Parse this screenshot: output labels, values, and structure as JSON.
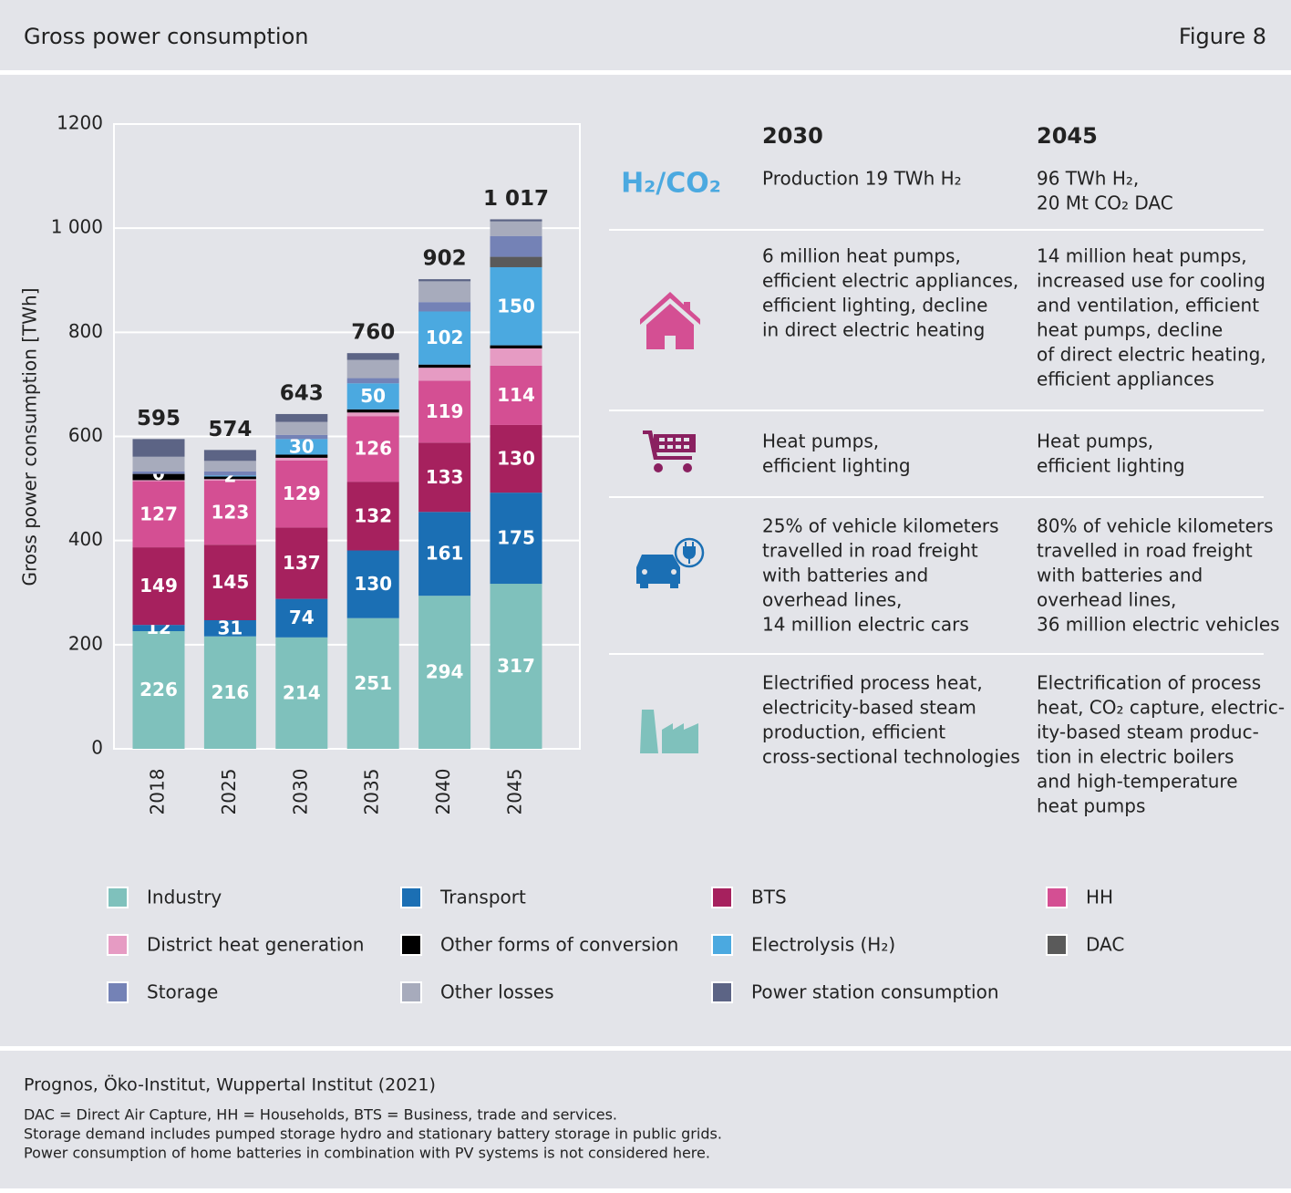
{
  "header": {
    "title": "Gross power consumption",
    "figure": "Figure 8"
  },
  "chart_data": {
    "type": "stacked-bar",
    "ylabel": "Gross power consumption [TWh]",
    "categories": [
      "2018",
      "2025",
      "2030",
      "2035",
      "2040",
      "2045"
    ],
    "ylim": [
      0,
      1200
    ],
    "yticks": [
      0,
      200,
      400,
      600,
      800,
      {
        "value": 1000,
        "label": "1 000"
      },
      1200
    ],
    "grid": true,
    "series": [
      {
        "name": "Industry",
        "color": "#7fc1bc",
        "show_labels": true,
        "values": [
          226,
          216,
          214,
          251,
          294,
          317
        ]
      },
      {
        "name": "Transport",
        "color": "#1b6fb4",
        "show_labels": true,
        "values": [
          12,
          31,
          74,
          130,
          161,
          175
        ]
      },
      {
        "name": "BTS",
        "color": "#a6215e",
        "show_labels": true,
        "values": [
          149,
          145,
          137,
          132,
          133,
          130
        ]
      },
      {
        "name": "HH",
        "color": "#d44f93",
        "show_labels": true,
        "values": [
          127,
          123,
          129,
          126,
          119,
          114
        ]
      },
      {
        "name": "District heat generation",
        "color": "#e69bc3",
        "values": [
          2,
          3,
          5,
          7,
          25,
          33
        ]
      },
      {
        "name": "Other forms of conversion",
        "color": "#000000",
        "values": [
          12,
          5,
          6,
          6,
          6,
          6
        ]
      },
      {
        "name": "Electrolysis (H₂)",
        "color": "#4ba9e0",
        "show_labels": true,
        "values": [
          0,
          2,
          30,
          50,
          102,
          150
        ]
      },
      {
        "name": "DAC",
        "color": "#5a5a5a",
        "values": [
          0,
          0,
          0,
          0,
          0,
          20
        ]
      },
      {
        "name": "Storage",
        "color": "#7482b6",
        "values": [
          5,
          8,
          8,
          10,
          18,
          40
        ]
      },
      {
        "name": "Other losses",
        "color": "#a7abbc",
        "values": [
          28,
          20,
          25,
          35,
          40,
          28
        ]
      },
      {
        "name": "Power station consumption",
        "color": "#5c6485",
        "values": [
          34,
          21,
          15,
          13,
          4,
          4
        ]
      }
    ],
    "totals": {
      "values": [
        595,
        574,
        643,
        760,
        902,
        1017
      ],
      "value_labels": [
        "595",
        "574",
        "643",
        "760",
        "902",
        "1 017"
      ]
    }
  },
  "table": {
    "columns": [
      "2030",
      "2045"
    ],
    "rows": [
      {
        "label": "H₂/CO₂",
        "cells": [
          [
            "Production 19 TWh H₂"
          ],
          [
            "96 TWh H₂,",
            "20 Mt CO₂ DAC"
          ]
        ]
      },
      {
        "cells": [
          [
            "6 million heat pumps,",
            "efficient electric appliances,",
            "efficient lighting, decline",
            "in direct electric heating"
          ],
          [
            "14 million heat pumps,",
            "increased use for cooling",
            "and ventilation, efficient",
            "heat pumps, decline",
            "of direct electric heating,",
            "efficient appliances"
          ]
        ]
      },
      {
        "cells": [
          [
            "Heat pumps,",
            "efficient lighting"
          ],
          [
            "Heat pumps,",
            "efficient lighting"
          ]
        ]
      },
      {
        "cells": [
          [
            "25% of vehicle kilometers",
            "travelled in road freight",
            "with batteries and",
            "overhead lines,",
            "14 million electric cars"
          ],
          [
            "80% of vehicle kilometers",
            "travelled in road freight",
            "with batteries and",
            "overhead lines,",
            "36 million electric vehicles"
          ]
        ]
      },
      {
        "cells": [
          [
            "Electrified process heat,",
            "electricity-based steam",
            "production, efficient",
            "cross-sectional technologies"
          ],
          [
            "Electrification of process",
            "heat, CO₂ capture, electric-",
            "ity-based steam produc-",
            "tion in electric boilers",
            "and high-temperature",
            "heat pumps"
          ]
        ]
      }
    ]
  },
  "source": "Prognos, Öko-Institut, Wuppertal Institut (2021)",
  "notes": [
    "DAC = Direct Air Capture, HH = Households, BTS = Business, trade and services.",
    "Storage demand includes pumped storage hydro and stationary battery storage in public grids.",
    "Power consumption of home batteries in combination with PV systems is not considered here."
  ]
}
